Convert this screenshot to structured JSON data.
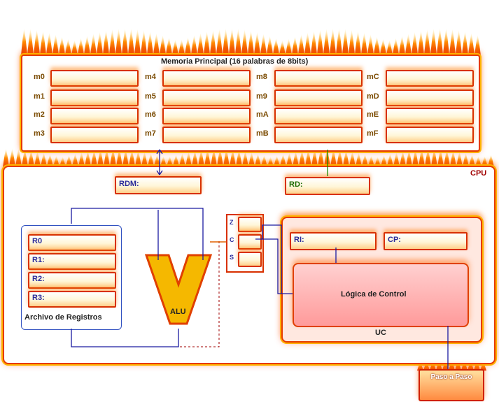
{
  "memory": {
    "title": "Memoria Principal (16 palabras de 8bits)",
    "labels": [
      "m0",
      "m1",
      "m2",
      "m3",
      "m4",
      "m5",
      "m6",
      "m7",
      "m8",
      "m9",
      "mA",
      "mB",
      "mC",
      "mD",
      "mE",
      "mF"
    ]
  },
  "cpu": {
    "label": "CPU",
    "rdm_label": "RDM:",
    "rdm_value": "",
    "rd_label": "RD:",
    "rd_value": ""
  },
  "registers": {
    "title": "Archivo de Registros",
    "items": [
      {
        "label": "R0",
        "value": ""
      },
      {
        "label": "R1:",
        "value": ""
      },
      {
        "label": "R2:",
        "value": ""
      },
      {
        "label": "R3:",
        "value": ""
      }
    ]
  },
  "alu": {
    "label": "ALU"
  },
  "flags": [
    "Z",
    "C",
    "S"
  ],
  "uc": {
    "label": "UC",
    "ri_label": "RI:",
    "cp_label": "CP:",
    "logic_label": "Lógica de Control"
  },
  "step_button": {
    "label": "Paso a Paso"
  },
  "colors": {
    "fire": "#e63a00",
    "glow": "#ffb300",
    "bus": "#1a1aa0",
    "alu": "#f5b800"
  }
}
